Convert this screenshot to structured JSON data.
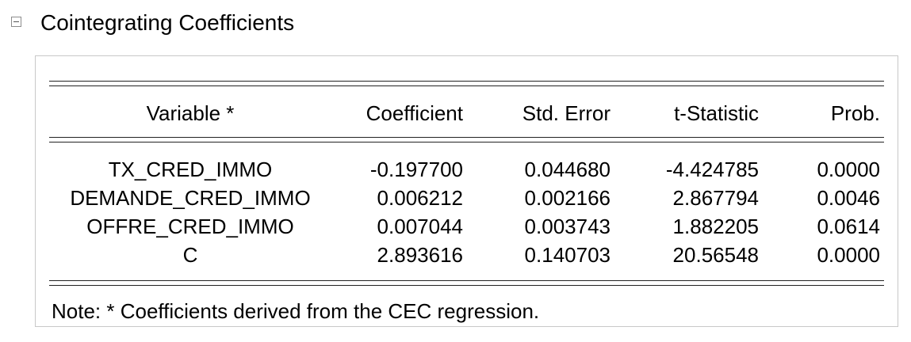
{
  "section": {
    "title": "Cointegrating Coefficients"
  },
  "table": {
    "headers": {
      "variable": "Variable *",
      "coefficient": "Coefficient",
      "std_error": "Std. Error",
      "t_statistic": "t-Statistic",
      "prob": "Prob."
    },
    "rows": [
      {
        "variable": "TX_CRED_IMMO",
        "coefficient": "-0.197700",
        "std_error": "0.044680",
        "t_statistic": "-4.424785",
        "prob": "0.0000"
      },
      {
        "variable": "DEMANDE_CRED_IMMO",
        "coefficient": "0.006212",
        "std_error": "0.002166",
        "t_statistic": "2.867794",
        "prob": "0.0046"
      },
      {
        "variable": "OFFRE_CRED_IMMO",
        "coefficient": "0.007044",
        "std_error": "0.003743",
        "t_statistic": "1.882205",
        "prob": "0.0614"
      },
      {
        "variable": "C",
        "coefficient": "2.893616",
        "std_error": "0.140703",
        "t_statistic": "20.56548",
        "prob": "0.0000"
      }
    ],
    "note": "Note: * Coefficients derived from the CEC regression."
  }
}
